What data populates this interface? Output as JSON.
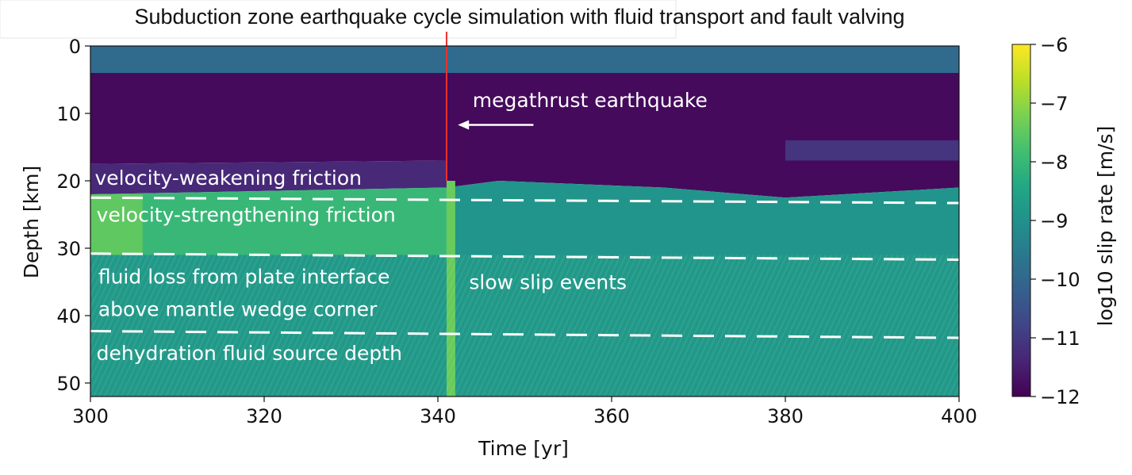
{
  "chart_data": {
    "type": "heatmap",
    "title": "Subduction zone earthquake cycle simulation with fluid transport and fault valving",
    "xlabel": "Time [yr]",
    "ylabel": "Depth [km]",
    "xlim": [
      300,
      400
    ],
    "ylim": [
      52,
      0
    ],
    "y_inverted": true,
    "xticks": [
      300,
      320,
      340,
      360,
      380,
      400
    ],
    "yticks": [
      0,
      10,
      20,
      30,
      40,
      50
    ],
    "colormap": "viridis",
    "colorbar": {
      "label": "log10 slip rate [m/s]",
      "range": [
        -12,
        -6
      ],
      "ticks": [
        "−6",
        "−7",
        "−8",
        "−9",
        "−10",
        "−11",
        "−12"
      ],
      "tick_values": [
        -6,
        -7,
        -8,
        -9,
        -10,
        -11,
        -12
      ]
    },
    "regions": [
      {
        "points": [
          [
            300,
            0
          ],
          [
            400,
            0
          ],
          [
            400,
            4
          ],
          [
            300,
            4
          ]
        ],
        "value": -9.9
      },
      {
        "points": [
          [
            300,
            4
          ],
          [
            341,
            4
          ],
          [
            341,
            17
          ],
          [
            300,
            17.5
          ]
        ],
        "value": -11.85
      },
      {
        "points": [
          [
            300,
            17.5
          ],
          [
            341,
            17
          ],
          [
            341,
            21
          ],
          [
            300,
            22
          ]
        ],
        "value": -11.3
      },
      {
        "points": [
          [
            300,
            22
          ],
          [
            341,
            21
          ],
          [
            341,
            31
          ],
          [
            300,
            31
          ]
        ],
        "value": -8.0
      },
      {
        "points": [
          [
            300,
            22
          ],
          [
            306,
            22
          ],
          [
            306,
            31
          ],
          [
            300,
            31
          ]
        ],
        "value": -7.5
      },
      {
        "points": [
          [
            300,
            31
          ],
          [
            400,
            31
          ],
          [
            400,
            52
          ],
          [
            300,
            52
          ]
        ],
        "value": -8.8
      },
      {
        "points": [
          [
            341,
            4
          ],
          [
            400,
            4
          ],
          [
            400,
            21
          ],
          [
            380,
            22.5
          ],
          [
            366,
            21
          ],
          [
            347,
            20
          ],
          [
            341,
            21
          ]
        ],
        "value": -11.85
      },
      {
        "points": [
          [
            341,
            21
          ],
          [
            347,
            20
          ],
          [
            366,
            21
          ],
          [
            380,
            22.5
          ],
          [
            400,
            21
          ],
          [
            400,
            31
          ],
          [
            341,
            31
          ]
        ],
        "value": -8.9
      },
      {
        "points": [
          [
            380,
            14
          ],
          [
            400,
            14
          ],
          [
            400,
            17
          ],
          [
            380,
            17
          ]
        ],
        "value": -11.1
      },
      {
        "points": [
          [
            341,
            20
          ],
          [
            342,
            20
          ],
          [
            342,
            52
          ],
          [
            341,
            52
          ]
        ],
        "value": -7.4
      }
    ],
    "dashed_lines": [
      {
        "from": [
          300,
          22.5
        ],
        "to": [
          400,
          23.3
        ]
      },
      {
        "from": [
          300,
          30.8
        ],
        "to": [
          400,
          31.7
        ]
      },
      {
        "from": [
          300,
          42.3
        ],
        "to": [
          400,
          43.3
        ]
      }
    ],
    "event_line": {
      "time": 341,
      "depth_to": 20,
      "color": "#e8332a"
    },
    "annotations": [
      {
        "text": "megathrust earthquake",
        "x": 344,
        "y": 8
      },
      {
        "text": "velocity-weakening friction",
        "x": 300.5,
        "y": 19.5
      },
      {
        "text": "velocity-strengthening friction",
        "x": 300.7,
        "y": 25
      },
      {
        "text": "fluid loss from plate interface",
        "x": 300.9,
        "y": 34.2
      },
      {
        "text": "above mantle wedge corner",
        "x": 300.9,
        "y": 39
      },
      {
        "text": "dehydration fluid source depth",
        "x": 300.7,
        "y": 45.5
      },
      {
        "text": "slow slip events",
        "x": 343.6,
        "y": 35
      }
    ],
    "arrow": {
      "from": [
        351,
        11.7
      ],
      "to": [
        342.3,
        11.7
      ]
    }
  }
}
